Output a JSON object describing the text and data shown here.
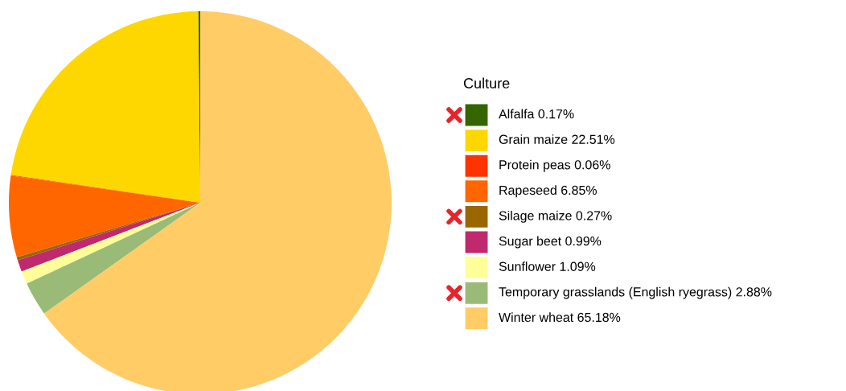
{
  "chart_data": {
    "type": "pie",
    "legend_title": "Culture",
    "legend": "right",
    "categories": [
      "Alfalfa 0.17%",
      "Grain maize 22.51%",
      "Protein peas 0.06%",
      "Rapeseed 6.85%",
      "Silage maize 0.27%",
      "Sugar beet 0.99%",
      "Sunflower 1.09%",
      "Temporary grasslands (English ryegrass) 2.88%",
      "Winter wheat 65.18%"
    ],
    "values": [
      0.17,
      22.51,
      0.06,
      6.85,
      0.27,
      0.99,
      1.09,
      2.88,
      65.18
    ],
    "colors": [
      "#336600",
      "#ffd700",
      "#ff3300",
      "#ff6600",
      "#996600",
      "#c0296e",
      "#ffff99",
      "#99bb77",
      "#ffcc66"
    ]
  }
}
